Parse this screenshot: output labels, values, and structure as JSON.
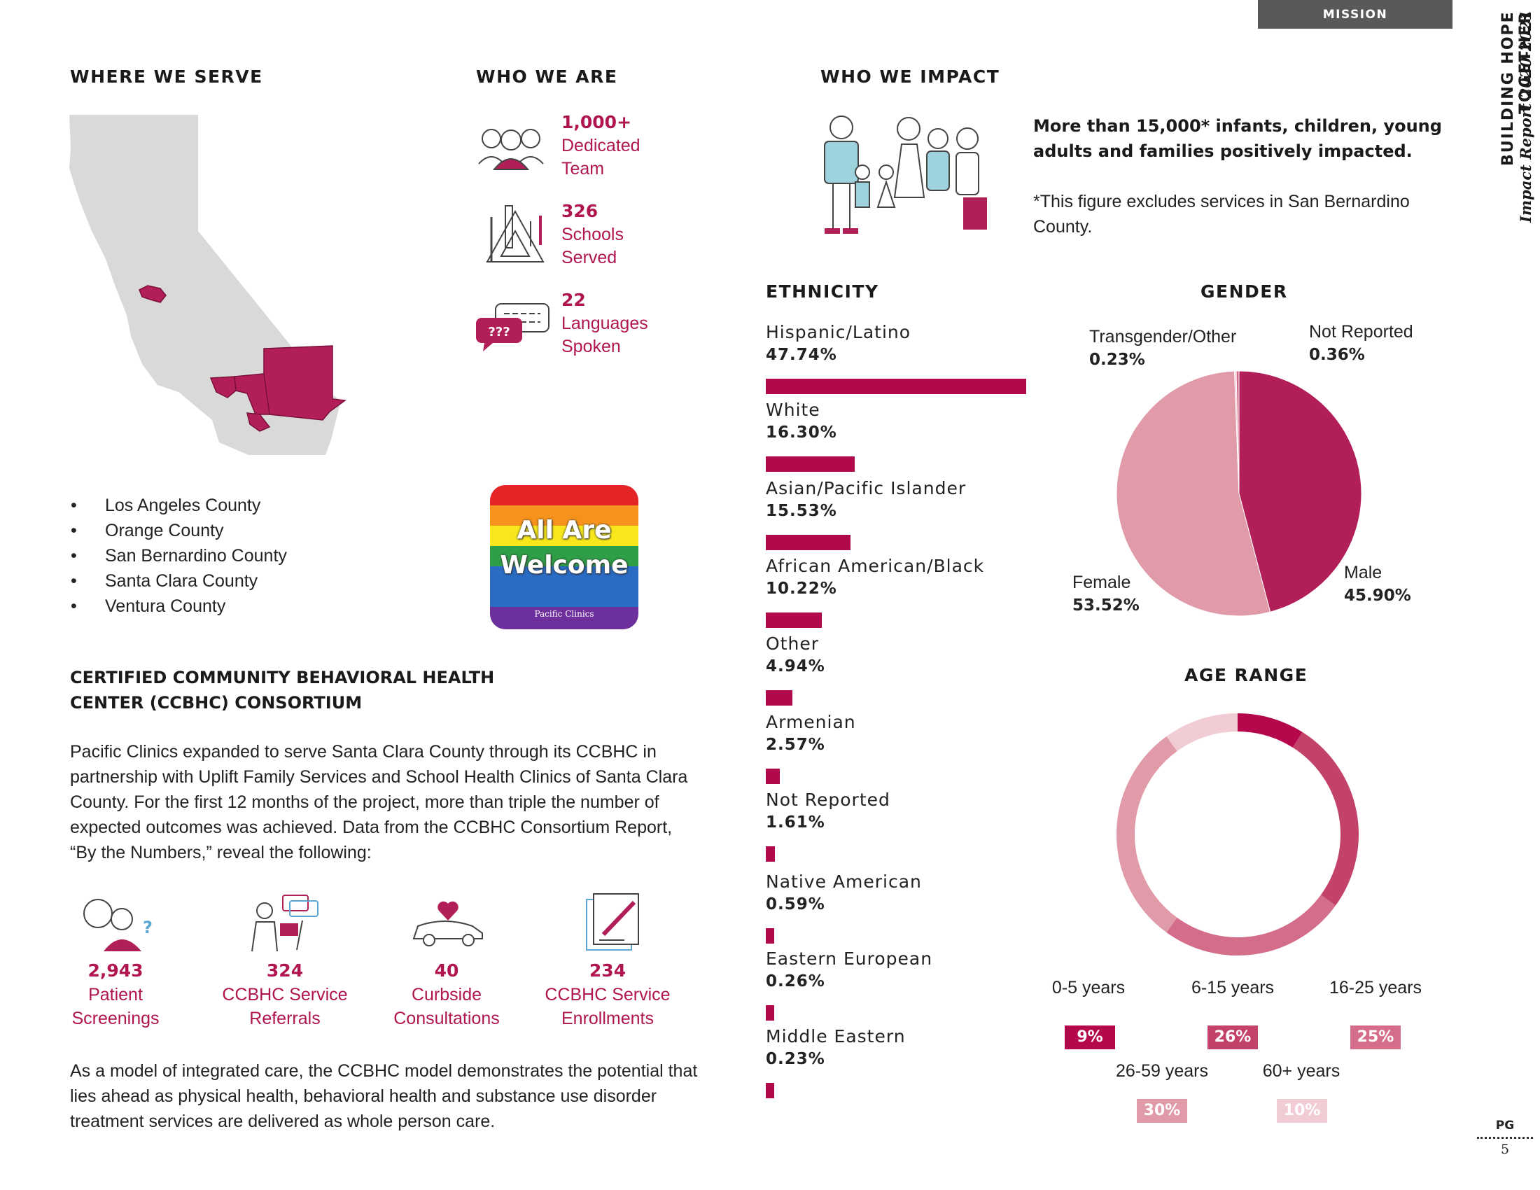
{
  "header": {
    "section_tab": "MISSION",
    "side_title": "BUILDING HOPE TOGETHER",
    "side_subtitle": "Impact Report 2020-2021"
  },
  "page": {
    "label": "PG",
    "number": "5"
  },
  "where_we_serve": {
    "heading": "WHERE WE SERVE",
    "counties": [
      "Los Angeles County",
      "Orange County",
      "San Bernardino County",
      "Santa Clara County",
      "Ventura County"
    ]
  },
  "who_we_are": {
    "heading": "WHO WE ARE",
    "stats": [
      {
        "value": "1,000+",
        "line1": "Dedicated",
        "line2": "Team",
        "icon": "team-icon"
      },
      {
        "value": "326",
        "line1": "Schools",
        "line2": "Served",
        "icon": "school-supplies-icon"
      },
      {
        "value": "22",
        "line1": "Languages",
        "line2": "Spoken",
        "icon": "speech-bubbles-icon"
      }
    ],
    "badge": {
      "line1": "All Are",
      "line2": "Welcome",
      "logo": "Pacific Clinics"
    },
    "speech_bubble_text": "???"
  },
  "ccbhc": {
    "heading_line1": "CERTIFIED COMMUNITY BEHAVIORAL HEALTH",
    "heading_line2": "CENTER (CCBHC) CONSORTIUM",
    "intro": "Pacific Clinics expanded to serve Santa Clara County through its CCBHC in partnership with Uplift Family Services and School Health Clinics of Santa Clara County. For the first 12 months of the project, more than triple the number of expected outcomes was achieved. Data from the CCBHC Consortium Report, “By the Numbers,” reveal the following:",
    "stats": [
      {
        "value": "2,943",
        "line1": "Patient",
        "line2": "Screenings",
        "icon": "screening-icon"
      },
      {
        "value": "324",
        "line1": "CCBHC Service",
        "line2": "Referrals",
        "icon": "referral-icon"
      },
      {
        "value": "40",
        "line1": "Curbside",
        "line2": "Consultations",
        "icon": "car-heart-icon"
      },
      {
        "value": "234",
        "line1": "CCBHC Service",
        "line2": "Enrollments",
        "icon": "enrollment-icon"
      }
    ],
    "closing": "As a model of integrated care, the CCBHC model demonstrates the potential that lies ahead as physical health, behavioral health and substance use disorder treatment services are delivered as whole person care."
  },
  "who_we_impact": {
    "heading": "WHO WE IMPACT",
    "headline": "More than 15,000* infants, children, young adults and families positively impacted.",
    "footnote": "*This figure excludes services in San Bernardino County."
  },
  "chart_data": [
    {
      "type": "bar",
      "title": "ETHNICITY",
      "categories": [
        "Hispanic/Latino",
        "White",
        "Asian/Pacific Islander",
        "African American/Black",
        "Other",
        "Armenian",
        "Not Reported",
        "Native American",
        "Eastern European",
        "Middle Eastern"
      ],
      "values": [
        47.74,
        16.3,
        15.53,
        10.22,
        4.94,
        2.57,
        1.61,
        0.59,
        0.26,
        0.23
      ],
      "value_labels": [
        "47.74%",
        "16.30%",
        "15.53%",
        "10.22%",
        "4.94%",
        "2.57%",
        "1.61%",
        "0.59%",
        "0.26%",
        "0.23%"
      ],
      "color": "#b10a4c"
    },
    {
      "type": "pie",
      "title": "GENDER",
      "categories": [
        "Male",
        "Female",
        "Transgender/Other",
        "Not Reported"
      ],
      "values": [
        45.9,
        53.52,
        0.23,
        0.36
      ],
      "value_labels": [
        "45.90%",
        "53.52%",
        "0.23%",
        "0.36%"
      ],
      "colors": [
        "#b11e58",
        "#e09aa8",
        "#f3c9d3",
        "#d36a86"
      ]
    },
    {
      "type": "pie",
      "title": "AGE RANGE",
      "categories": [
        "0-5 years",
        "6-15 years",
        "16-25 years",
        "26-59 years",
        "60+ years"
      ],
      "values": [
        9,
        26,
        25,
        30,
        10
      ],
      "value_labels": [
        "9%",
        "26%",
        "25%",
        "30%",
        "10%"
      ],
      "colors": [
        "#b5084c",
        "#c2426a",
        "#d46d89",
        "#e09aa8",
        "#f1ccd5"
      ]
    }
  ]
}
